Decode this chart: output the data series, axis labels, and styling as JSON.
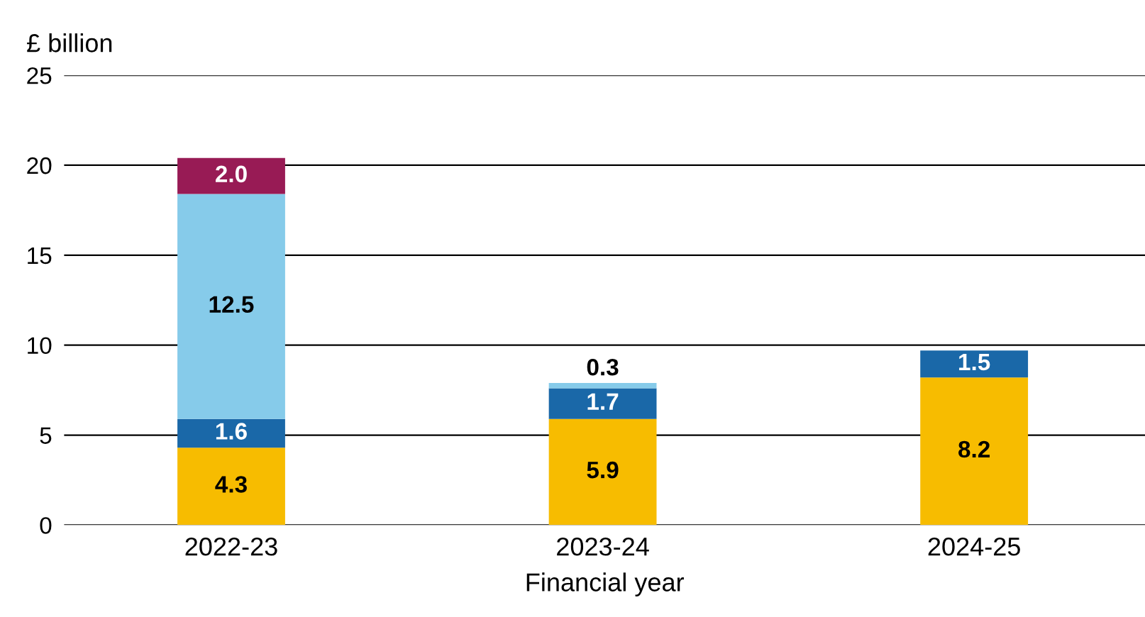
{
  "chart_data": {
    "type": "bar",
    "stacked": true,
    "ylabel": "£ billion",
    "xlabel": "Financial year",
    "categories": [
      "2022-23",
      "2023-24",
      "2024-25"
    ],
    "series": [
      {
        "color": "#f7bc00",
        "values": [
          4.3,
          5.9,
          8.2
        ],
        "value_labels": [
          "4.3",
          "5.9",
          "8.2"
        ]
      },
      {
        "color": "#1a68a8",
        "values": [
          1.6,
          1.7,
          1.5
        ],
        "value_labels": [
          "1.6",
          "1.7",
          "1.5"
        ]
      },
      {
        "color": "#86cbea",
        "values": [
          12.5,
          0.3,
          null
        ],
        "value_labels": [
          "12.5",
          "0.3",
          null
        ]
      },
      {
        "color": "#981b55",
        "values": [
          2.0,
          null,
          null
        ],
        "value_labels": [
          "2.0",
          null,
          null
        ]
      }
    ],
    "ylim": [
      0,
      25
    ],
    "yticks": [
      0,
      5,
      10,
      15,
      20,
      25
    ],
    "grid": "y"
  }
}
